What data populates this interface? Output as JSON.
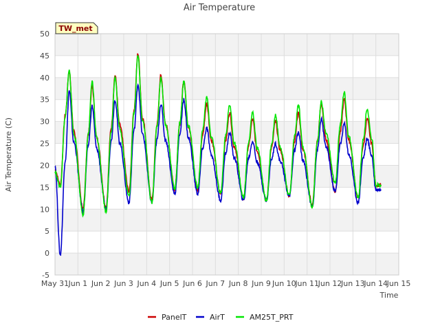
{
  "chart_data": {
    "type": "line",
    "title": "Air Temperature",
    "xlabel": "Time",
    "ylabel": "Air Temperature (C)",
    "station_badge": "TW_met",
    "ylim": [
      -5,
      50
    ],
    "yticks": [
      -5,
      0,
      5,
      10,
      15,
      20,
      25,
      30,
      35,
      40,
      45,
      50
    ],
    "xlim": [
      "2024-05-31",
      "2024-06-15"
    ],
    "xticks": [
      "May 31",
      "Jun 1",
      "Jun 2",
      "Jun 3",
      "Jun 4",
      "Jun 5",
      "Jun 6",
      "Jun 7",
      "Jun 8",
      "Jun 9",
      "Jun 10",
      "Jun 11",
      "Jun 12",
      "Jun 13",
      "Jun 14",
      "Jun 15"
    ],
    "grid": true,
    "shaded_bands": true,
    "legend_position": "bottom-center",
    "colors": {
      "PanelT": "#cc0000",
      "AirT": "#0000cc",
      "AM25T_PRT": "#00e600"
    },
    "daily_extremes_note": "approximate daily min/max per series",
    "series": [
      {
        "name": "PanelT",
        "color": "#cc0000",
        "daily_min": [
          15.5,
          10.0,
          10.5,
          14.0,
          12.0,
          14.5,
          14.5,
          13.5,
          12.5,
          12.0,
          13.0,
          11.0,
          14.0,
          12.5,
          15.5
        ],
        "daily_max": [
          41.5,
          38.0,
          40.5,
          45.5,
          40.5,
          39.0,
          34.0,
          32.0,
          30.5,
          30.0,
          32.0,
          34.0,
          35.0,
          30.5
        ],
        "start": 19.0,
        "end": 15.5
      },
      {
        "name": "AirT",
        "color": "#0000cc",
        "daily_min": [
          -0.5,
          9.5,
          10.0,
          11.5,
          11.5,
          13.5,
          13.5,
          12.0,
          12.0,
          12.0,
          13.0,
          10.5,
          14.0,
          11.5,
          14.5
        ],
        "daily_max": [
          37.0,
          33.5,
          35.0,
          38.5,
          34.0,
          35.0,
          28.5,
          27.5,
          25.5,
          25.0,
          27.5,
          30.5,
          29.5,
          26.0
        ],
        "start": 20.0,
        "end": 14.5
      },
      {
        "name": "AM25T_PRT",
        "color": "#00e600",
        "daily_min": [
          15.0,
          8.8,
          9.5,
          13.0,
          11.5,
          14.5,
          15.0,
          13.5,
          12.5,
          12.0,
          13.0,
          10.5,
          16.0,
          12.5,
          15.5
        ],
        "daily_max": [
          41.5,
          39.0,
          40.0,
          45.0,
          40.0,
          39.0,
          35.5,
          33.8,
          32.0,
          31.5,
          33.8,
          34.5,
          36.7,
          32.8
        ],
        "start": 18.5,
        "end": 15.5
      }
    ]
  }
}
